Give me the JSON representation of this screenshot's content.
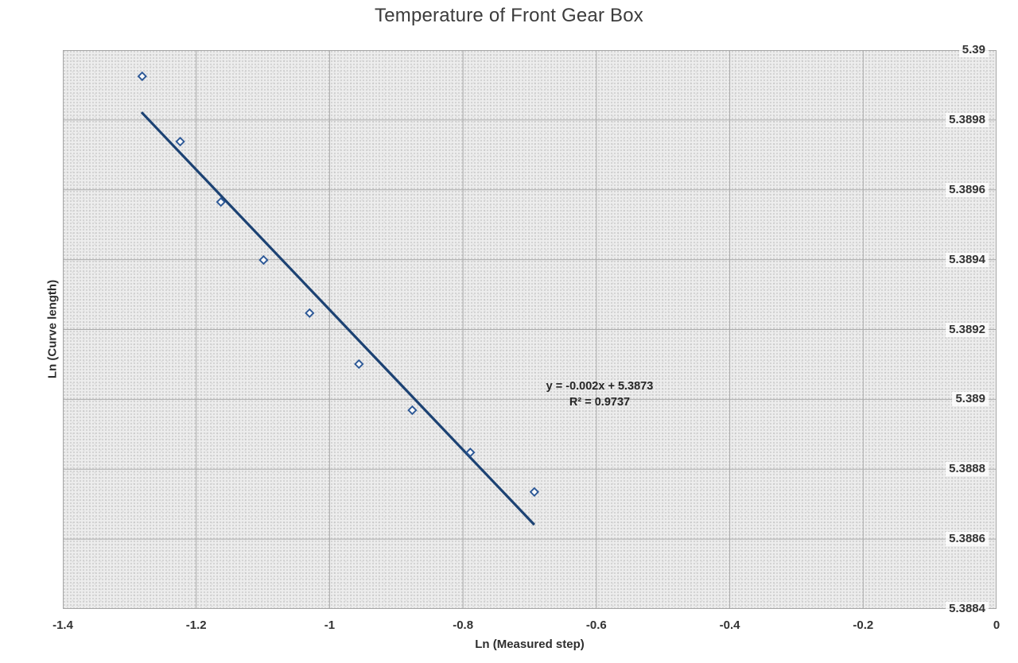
{
  "chart_data": {
    "type": "scatter",
    "title": "Temperature of Front Gear Box",
    "xlabel": "Ln (Measured step)",
    "ylabel": "Ln (Curve length)",
    "xlim": [
      -1.4,
      0
    ],
    "ylim": [
      5.3884,
      5.39
    ],
    "grid": true,
    "y_axis_side": "right",
    "legend": "none",
    "x_tick_values": [
      -1.4,
      -1.2,
      -1,
      -0.8,
      -0.6,
      -0.4,
      -0.2,
      0
    ],
    "x_tick_labels": [
      "-1.4",
      "-1.2",
      "-1",
      "-0.8",
      "-0.6",
      "-0.4",
      "-0.2",
      "0"
    ],
    "y_tick_values": [
      5.3884,
      5.3886,
      5.3888,
      5.389,
      5.3892,
      5.3894,
      5.3896,
      5.3898,
      5.39
    ],
    "y_tick_labels": [
      "5.3884",
      "5.3886",
      "5.3888",
      "5.389",
      "5.3892",
      "5.3894",
      "5.3896",
      "5.3898",
      "5.39"
    ],
    "series": [
      {
        "marker": "open-diamond",
        "color": "#2b5796",
        "points": [
          {
            "x": -1.281,
            "y": 5.389925
          },
          {
            "x": -1.224,
            "y": 5.389738
          },
          {
            "x": -1.163,
            "y": 5.389565
          },
          {
            "x": -1.099,
            "y": 5.389399
          },
          {
            "x": -1.03,
            "y": 5.389247
          },
          {
            "x": -0.956,
            "y": 5.389101
          },
          {
            "x": -0.876,
            "y": 5.388969
          },
          {
            "x": -0.789,
            "y": 5.388848
          },
          {
            "x": -0.693,
            "y": 5.388735
          }
        ]
      }
    ],
    "trendline": {
      "color": "#1c4273",
      "x1": -1.282,
      "y1": 5.389822,
      "x2": -0.693,
      "y2": 5.388641,
      "equation": "y = -0.002x + 5.3873",
      "r_squared": "R² = 0.9737"
    }
  },
  "colors": {
    "plot_bg": "#ededed",
    "gridline": "#ababab",
    "border": "#a6a6a6",
    "title_text": "#3c3c3c",
    "tick_text": "#333333"
  }
}
